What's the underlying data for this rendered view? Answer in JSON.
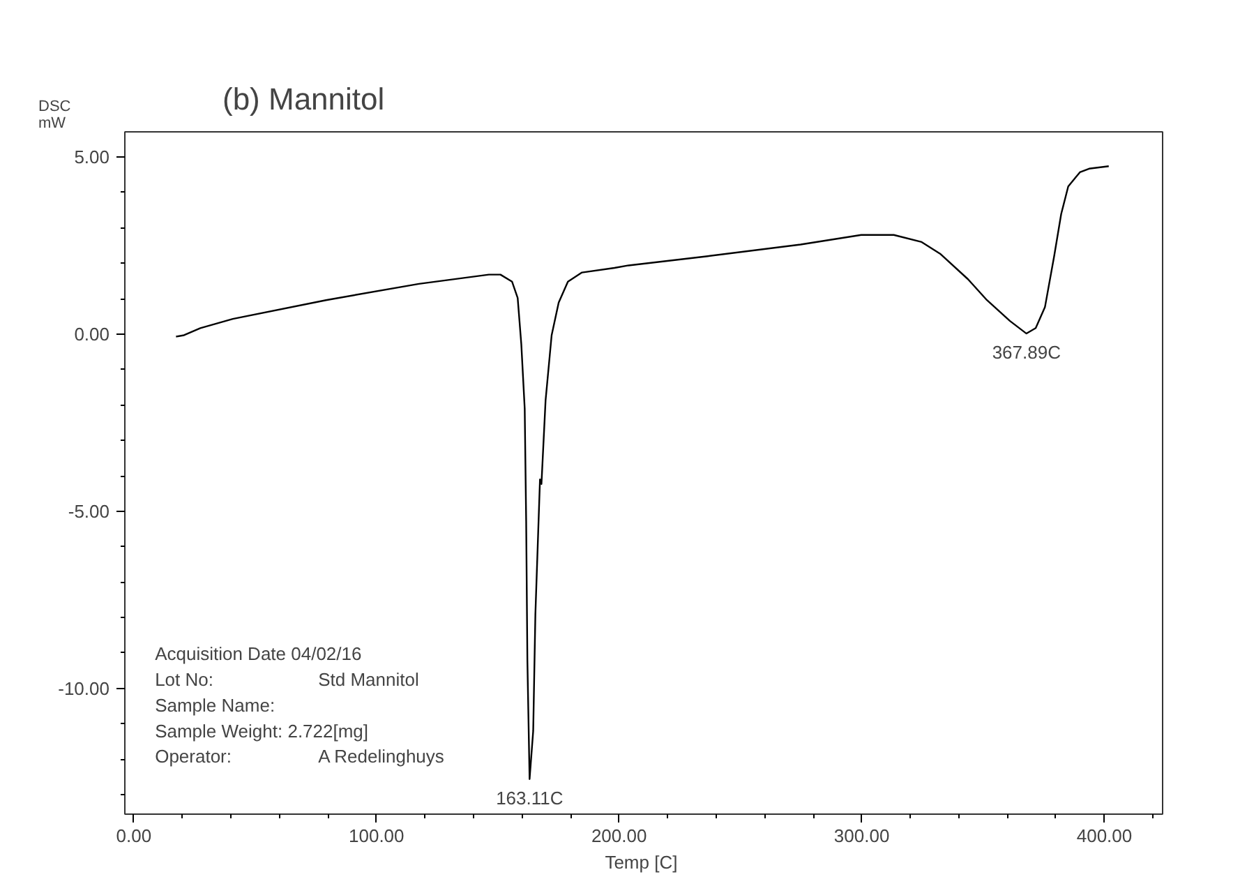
{
  "chart_data": {
    "type": "line",
    "title": "(b) Mannitol",
    "ylabel": "DSC\nmW",
    "xlabel": "Temp  [C]",
    "x": [
      17.4,
      20.7,
      27.4,
      40.8,
      79.2,
      117.5,
      146.3,
      151.1,
      155.9,
      158.2,
      159.7,
      161.1,
      161.7,
      162.2,
      163.11,
      164.6,
      165.5,
      167.4,
      168,
      169.7,
      172.2,
      175.1,
      178.9,
      184.7,
      198.1,
      203.9,
      236.5,
      274.8,
      299.8,
      313.2,
      324.7,
      332.3,
      343.8,
      351.6,
      361.1,
      367.4,
      367.89,
      371.7,
      375.5,
      379.3,
      382.2,
      385.1,
      389.9,
      393.7,
      401.8
    ],
    "series": [
      {
        "color": "#000000",
        "values": [
          -0.07,
          -0.03,
          0.17,
          0.43,
          0.96,
          1.42,
          1.68,
          1.68,
          1.48,
          1.02,
          -0.29,
          -2.1,
          -5.28,
          -9.2,
          -12.56,
          -11.2,
          -7.9,
          -4.1,
          -4.23,
          -1.87,
          -0.03,
          0.89,
          1.48,
          1.74,
          1.87,
          1.94,
          2.2,
          2.53,
          2.8,
          2.8,
          2.6,
          2.27,
          1.55,
          0.96,
          0.37,
          0.04,
          0.02,
          0.17,
          0.76,
          2.2,
          3.39,
          4.17,
          4.57,
          4.67,
          4.74
        ]
      }
    ],
    "xlim": [
      -3.7,
      424
    ],
    "ylim": [
      -13.55,
      5.71
    ],
    "xticks": [
      {
        "value": 0,
        "label": "0.00"
      },
      {
        "value": 20,
        "label": null
      },
      {
        "value": 40,
        "label": null
      },
      {
        "value": 60,
        "label": null
      },
      {
        "value": 80,
        "label": null
      },
      {
        "value": 100,
        "label": "100.00"
      },
      {
        "value": 120,
        "label": null
      },
      {
        "value": 140,
        "label": null
      },
      {
        "value": 160,
        "label": null
      },
      {
        "value": 180,
        "label": null
      },
      {
        "value": 200,
        "label": "200.00"
      },
      {
        "value": 220,
        "label": null
      },
      {
        "value": 240,
        "label": null
      },
      {
        "value": 260,
        "label": null
      },
      {
        "value": 280,
        "label": null
      },
      {
        "value": 300,
        "label": "300.00"
      },
      {
        "value": 320,
        "label": null
      },
      {
        "value": 340,
        "label": null
      },
      {
        "value": 360,
        "label": null
      },
      {
        "value": 380,
        "label": null
      },
      {
        "value": 400,
        "label": "400.00"
      },
      {
        "value": 420,
        "label": null
      }
    ],
    "yticks": [
      {
        "value": -13,
        "label": null
      },
      {
        "value": -12,
        "label": null
      },
      {
        "value": -11,
        "label": null
      },
      {
        "value": -10,
        "label": "-10.00"
      },
      {
        "value": -9,
        "label": null
      },
      {
        "value": -8,
        "label": null
      },
      {
        "value": -7,
        "label": null
      },
      {
        "value": -6,
        "label": null
      },
      {
        "value": -5,
        "label": "-5.00"
      },
      {
        "value": -4,
        "label": null
      },
      {
        "value": -3,
        "label": null
      },
      {
        "value": -2,
        "label": null
      },
      {
        "value": -1,
        "label": null
      },
      {
        "value": 0,
        "label": "0.00"
      },
      {
        "value": 1,
        "label": null
      },
      {
        "value": 2,
        "label": null
      },
      {
        "value": 3,
        "label": null
      },
      {
        "value": 4,
        "label": null
      },
      {
        "value": 5,
        "label": "5.00"
      }
    ],
    "grid": false,
    "marker": "none",
    "line_style": "solid",
    "annotations": [
      {
        "text": "163.11C",
        "x": 163.11,
        "y": -12.56
      },
      {
        "text": "367.89C",
        "x": 367.89,
        "y": 0.02
      },
      "Acquisition Date 04/02/16",
      "Lot No:      Std Mannitol",
      "Sample Name:",
      "Sample Weight: 2.722[mg]",
      "Operator:      A Redelinghuys"
    ]
  }
}
